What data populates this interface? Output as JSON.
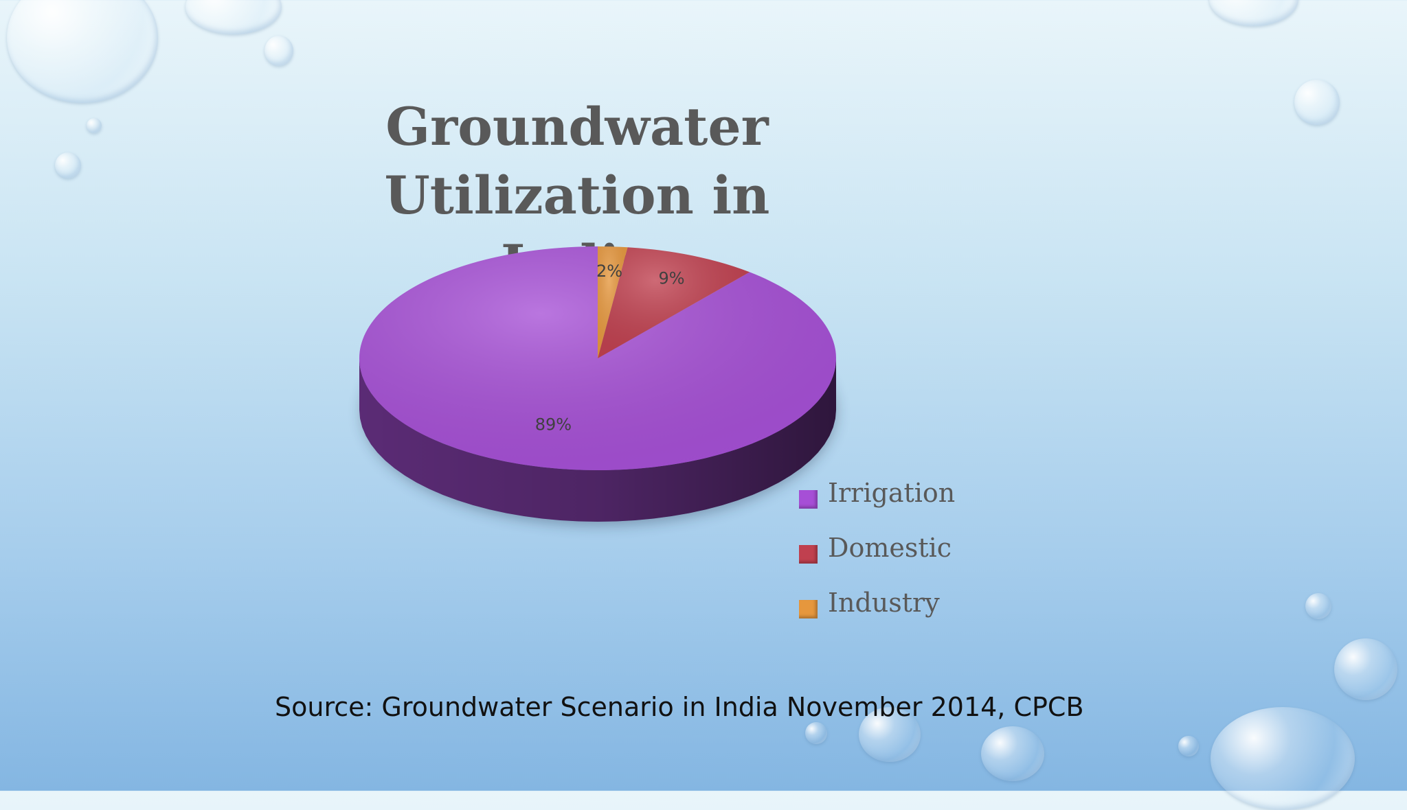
{
  "slide": {
    "title_line1": "Groundwater",
    "title_line2": "Utilization in India",
    "source": "Source: Groundwater Scenario in India November 2014, CPCB"
  },
  "chart_data": {
    "type": "pie",
    "title": "Groundwater Utilization in India",
    "three_d": true,
    "legend_position": "bottom-right",
    "slices": [
      {
        "name": "Irrigation",
        "value": 89,
        "label": "89%",
        "color": "#a64fd6"
      },
      {
        "name": "Domestic",
        "value": 9,
        "label": "9%",
        "color": "#c0404f"
      },
      {
        "name": "Industry",
        "value": 2,
        "label": "2%",
        "color": "#e6973d"
      }
    ]
  }
}
